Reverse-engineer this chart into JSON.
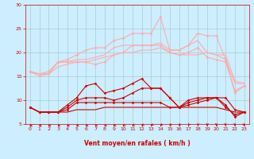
{
  "x": [
    0,
    1,
    2,
    3,
    4,
    5,
    6,
    7,
    8,
    9,
    10,
    11,
    12,
    13,
    14,
    15,
    16,
    17,
    18,
    19,
    20,
    21,
    22,
    23
  ],
  "lines": [
    {
      "y": [
        8.5,
        7.5,
        7.5,
        7.5,
        7.5,
        8.0,
        8.0,
        8.0,
        8.5,
        8.5,
        8.5,
        8.5,
        8.5,
        8.5,
        8.5,
        8.5,
        8.5,
        8.5,
        8.5,
        8.5,
        8.5,
        8.0,
        7.5,
        7.5
      ],
      "color": "#cc0000",
      "linewidth": 0.8,
      "marker": null
    },
    {
      "y": [
        8.5,
        7.5,
        7.5,
        7.5,
        8.0,
        9.5,
        9.5,
        9.5,
        9.5,
        9.5,
        9.5,
        9.5,
        9.5,
        9.5,
        9.5,
        8.5,
        8.5,
        9.0,
        9.5,
        10.0,
        10.5,
        8.5,
        7.0,
        7.5
      ],
      "color": "#cc0000",
      "linewidth": 0.8,
      "marker": "D",
      "markersize": 1.5
    },
    {
      "y": [
        8.5,
        7.5,
        7.5,
        7.5,
        8.5,
        10.0,
        10.5,
        10.5,
        10.5,
        10.0,
        10.5,
        11.5,
        12.5,
        12.5,
        12.5,
        10.5,
        8.5,
        9.5,
        10.0,
        10.5,
        10.5,
        9.0,
        6.5,
        7.5
      ],
      "color": "#cc0000",
      "linewidth": 0.8,
      "marker": "D",
      "markersize": 1.5
    },
    {
      "y": [
        8.5,
        7.5,
        7.5,
        7.5,
        9.0,
        10.5,
        13.0,
        13.5,
        11.5,
        12.0,
        12.5,
        13.5,
        14.5,
        12.5,
        12.5,
        10.5,
        8.5,
        10.0,
        10.5,
        10.5,
        10.5,
        10.5,
        8.0,
        7.5
      ],
      "color": "#cc0000",
      "linewidth": 0.8,
      "marker": "D",
      "markersize": 1.5
    },
    {
      "y": [
        16.0,
        15.5,
        15.5,
        18.0,
        18.0,
        18.0,
        18.0,
        17.5,
        18.0,
        19.5,
        20.0,
        21.5,
        21.5,
        21.5,
        21.5,
        20.0,
        19.5,
        20.0,
        21.0,
        19.0,
        18.5,
        18.0,
        12.0,
        13.0
      ],
      "color": "#ffaaaa",
      "linewidth": 0.8,
      "marker": "D",
      "markersize": 1.5
    },
    {
      "y": [
        16.0,
        15.5,
        15.5,
        18.0,
        18.0,
        18.5,
        18.5,
        19.0,
        19.5,
        21.0,
        21.5,
        21.5,
        21.5,
        21.5,
        22.0,
        20.5,
        20.5,
        21.5,
        22.5,
        20.0,
        19.5,
        18.5,
        13.5,
        13.5
      ],
      "color": "#ffaaaa",
      "linewidth": 0.8,
      "marker": null
    },
    {
      "y": [
        16.0,
        15.5,
        16.0,
        18.0,
        18.5,
        19.5,
        20.5,
        21.0,
        21.0,
        22.5,
        23.0,
        24.0,
        24.0,
        24.0,
        27.5,
        20.5,
        20.5,
        21.5,
        24.0,
        23.5,
        23.5,
        18.5,
        11.5,
        13.0
      ],
      "color": "#ffaaaa",
      "linewidth": 0.8,
      "marker": "D",
      "markersize": 1.5
    },
    {
      "y": [
        16.0,
        15.0,
        15.5,
        17.0,
        17.5,
        18.0,
        18.0,
        18.5,
        19.0,
        19.5,
        20.0,
        20.0,
        20.5,
        20.5,
        21.0,
        20.0,
        19.5,
        19.5,
        19.5,
        20.0,
        19.5,
        19.5,
        14.0,
        13.5
      ],
      "color": "#ffaaaa",
      "linewidth": 0.8,
      "marker": null
    }
  ],
  "arrow_angles": [
    270,
    270,
    270,
    260,
    270,
    255,
    255,
    250,
    245,
    240,
    235,
    230,
    225,
    215,
    210,
    205,
    200,
    195,
    190,
    185,
    180,
    175,
    170,
    165
  ],
  "xlabel": "Vent moyen/en rafales ( km/h )",
  "xlim": [
    -0.5,
    23.5
  ],
  "ylim": [
    5,
    30
  ],
  "yticks": [
    5,
    10,
    15,
    20,
    25,
    30
  ],
  "xticks": [
    0,
    1,
    2,
    3,
    4,
    5,
    6,
    7,
    8,
    9,
    10,
    11,
    12,
    13,
    14,
    15,
    16,
    17,
    18,
    19,
    20,
    21,
    22,
    23
  ],
  "bg_color": "#cceeff",
  "grid_color": "#aacccc",
  "arrow_color": "#cc0000",
  "xlabel_color": "#cc0000",
  "tick_color": "#cc0000",
  "spine_color": "#cc0000"
}
